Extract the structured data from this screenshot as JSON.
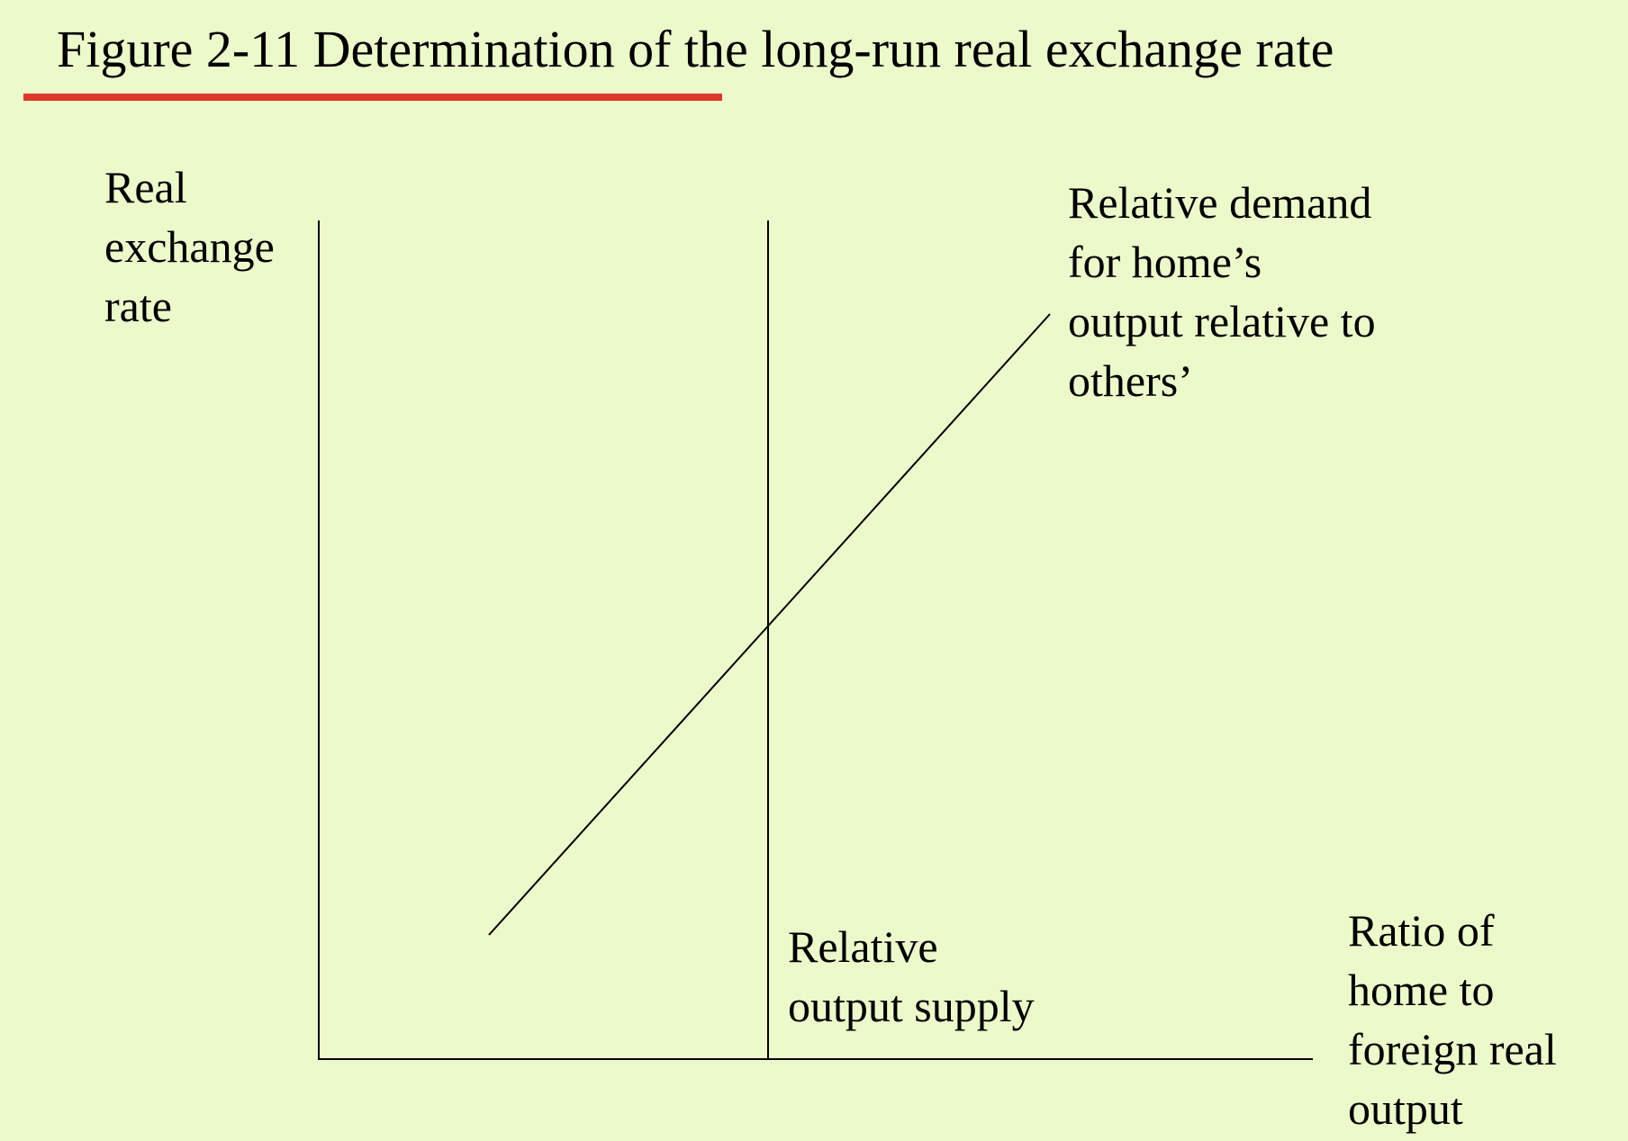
{
  "title": "Figure 2-11 Determination of the long-run real exchange rate",
  "colors": {
    "background": "#ecf9cb",
    "title_rule": "#dc3a28",
    "ink": "#000000"
  },
  "axes": {
    "y_label": [
      "Real",
      "exchange",
      "rate"
    ],
    "x_label": [
      "Ratio of",
      "home to",
      "foreign real",
      "output"
    ]
  },
  "curves": {
    "demand": {
      "label": [
        "Relative demand",
        "for home’s",
        "output relative to",
        "others’"
      ],
      "slope": "upward"
    },
    "supply": {
      "label": [
        "Relative",
        "output supply"
      ],
      "slope": "vertical"
    }
  }
}
